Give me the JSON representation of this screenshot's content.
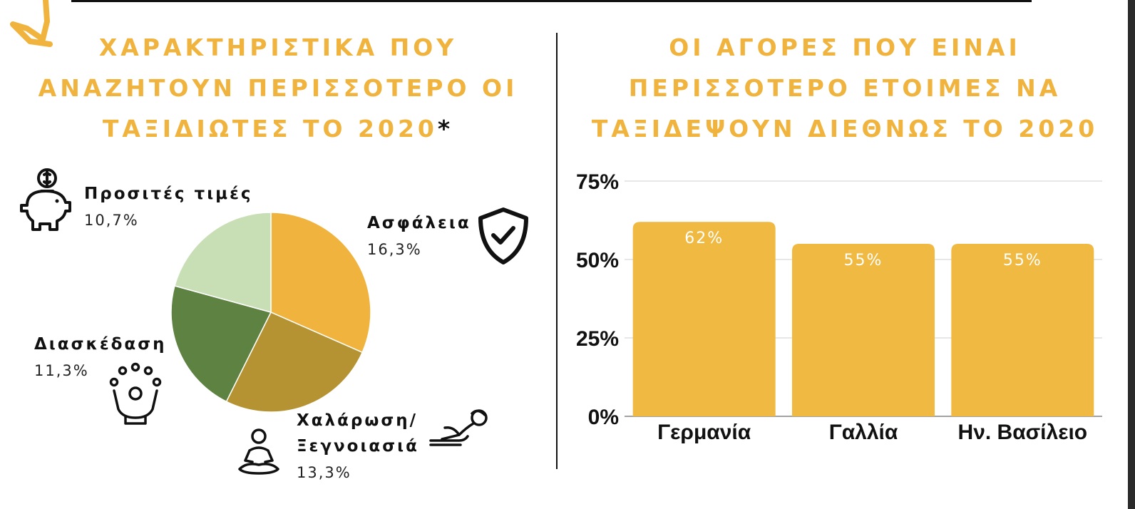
{
  "left_panel": {
    "title_lines": [
      "ΧΑΡΑΚΤΗΡΙΣΤΙΚΑ ΠΟΥ",
      "ΑΝΑΖΗΤΟΥΝ ΠΕΡΙΣΣΟΤΕΡΟ ΟΙ",
      "ΤΑΞΙΔΙΩΤΕΣ ΤΟ 2020"
    ],
    "title_mark": "*"
  },
  "right_panel": {
    "title_lines": [
      "ΟΙ ΑΓΟΡΕΣ ΠΟΥ ΕΙΝΑΙ",
      "ΠΕΡΙΣΣΟΤΕΡΟ ΕΤΟΙΜΕΣ ΝΑ",
      "ΤΑΞΙΔΕΨΟΥΝ ΔΙΕΘΝΩΣ ΤΟ 2020"
    ]
  },
  "icons": {
    "prices": "piggy-bank-icon",
    "safety": "shield-check-icon",
    "relax": "meditation-icon",
    "carefree": "lounging-person-icon",
    "fun": "juggling-person-icon"
  },
  "colors": {
    "accent": "#f0b43e",
    "bar": "#f0b942",
    "pie": [
      "#f0b43e",
      "#b59232",
      "#5e8241",
      "#c8dfb6"
    ]
  },
  "chart_data": [
    {
      "type": "pie",
      "slices": [
        {
          "label": "Ασφάλεια",
          "value_label": "16,3%",
          "value": 16.3,
          "color": "#f0b43e"
        },
        {
          "label_lines": [
            "Χαλάρωση/",
            "Ξεγνοιασιά"
          ],
          "value_label": "13,3%",
          "value": 13.3,
          "color": "#b59232"
        },
        {
          "label": "Διασκέδαση",
          "value_label": "11,3%",
          "value": 11.3,
          "color": "#5e8241"
        },
        {
          "label": "Προσιτές τιμές",
          "value_label": "10,7%",
          "value": 10.7,
          "color": "#c8dfb6"
        }
      ]
    },
    {
      "type": "bar",
      "categories": [
        "Γερμανία",
        "Γαλλία",
        "Ην. Βασίλειο"
      ],
      "values": [
        62,
        55,
        55
      ],
      "value_labels": [
        "62%",
        "55%",
        "55%"
      ],
      "ylim": [
        0,
        75
      ],
      "yticks": [
        0,
        25,
        50,
        75
      ],
      "ytick_labels": [
        "0%",
        "25%",
        "50%",
        "75%"
      ],
      "grid": true
    }
  ]
}
